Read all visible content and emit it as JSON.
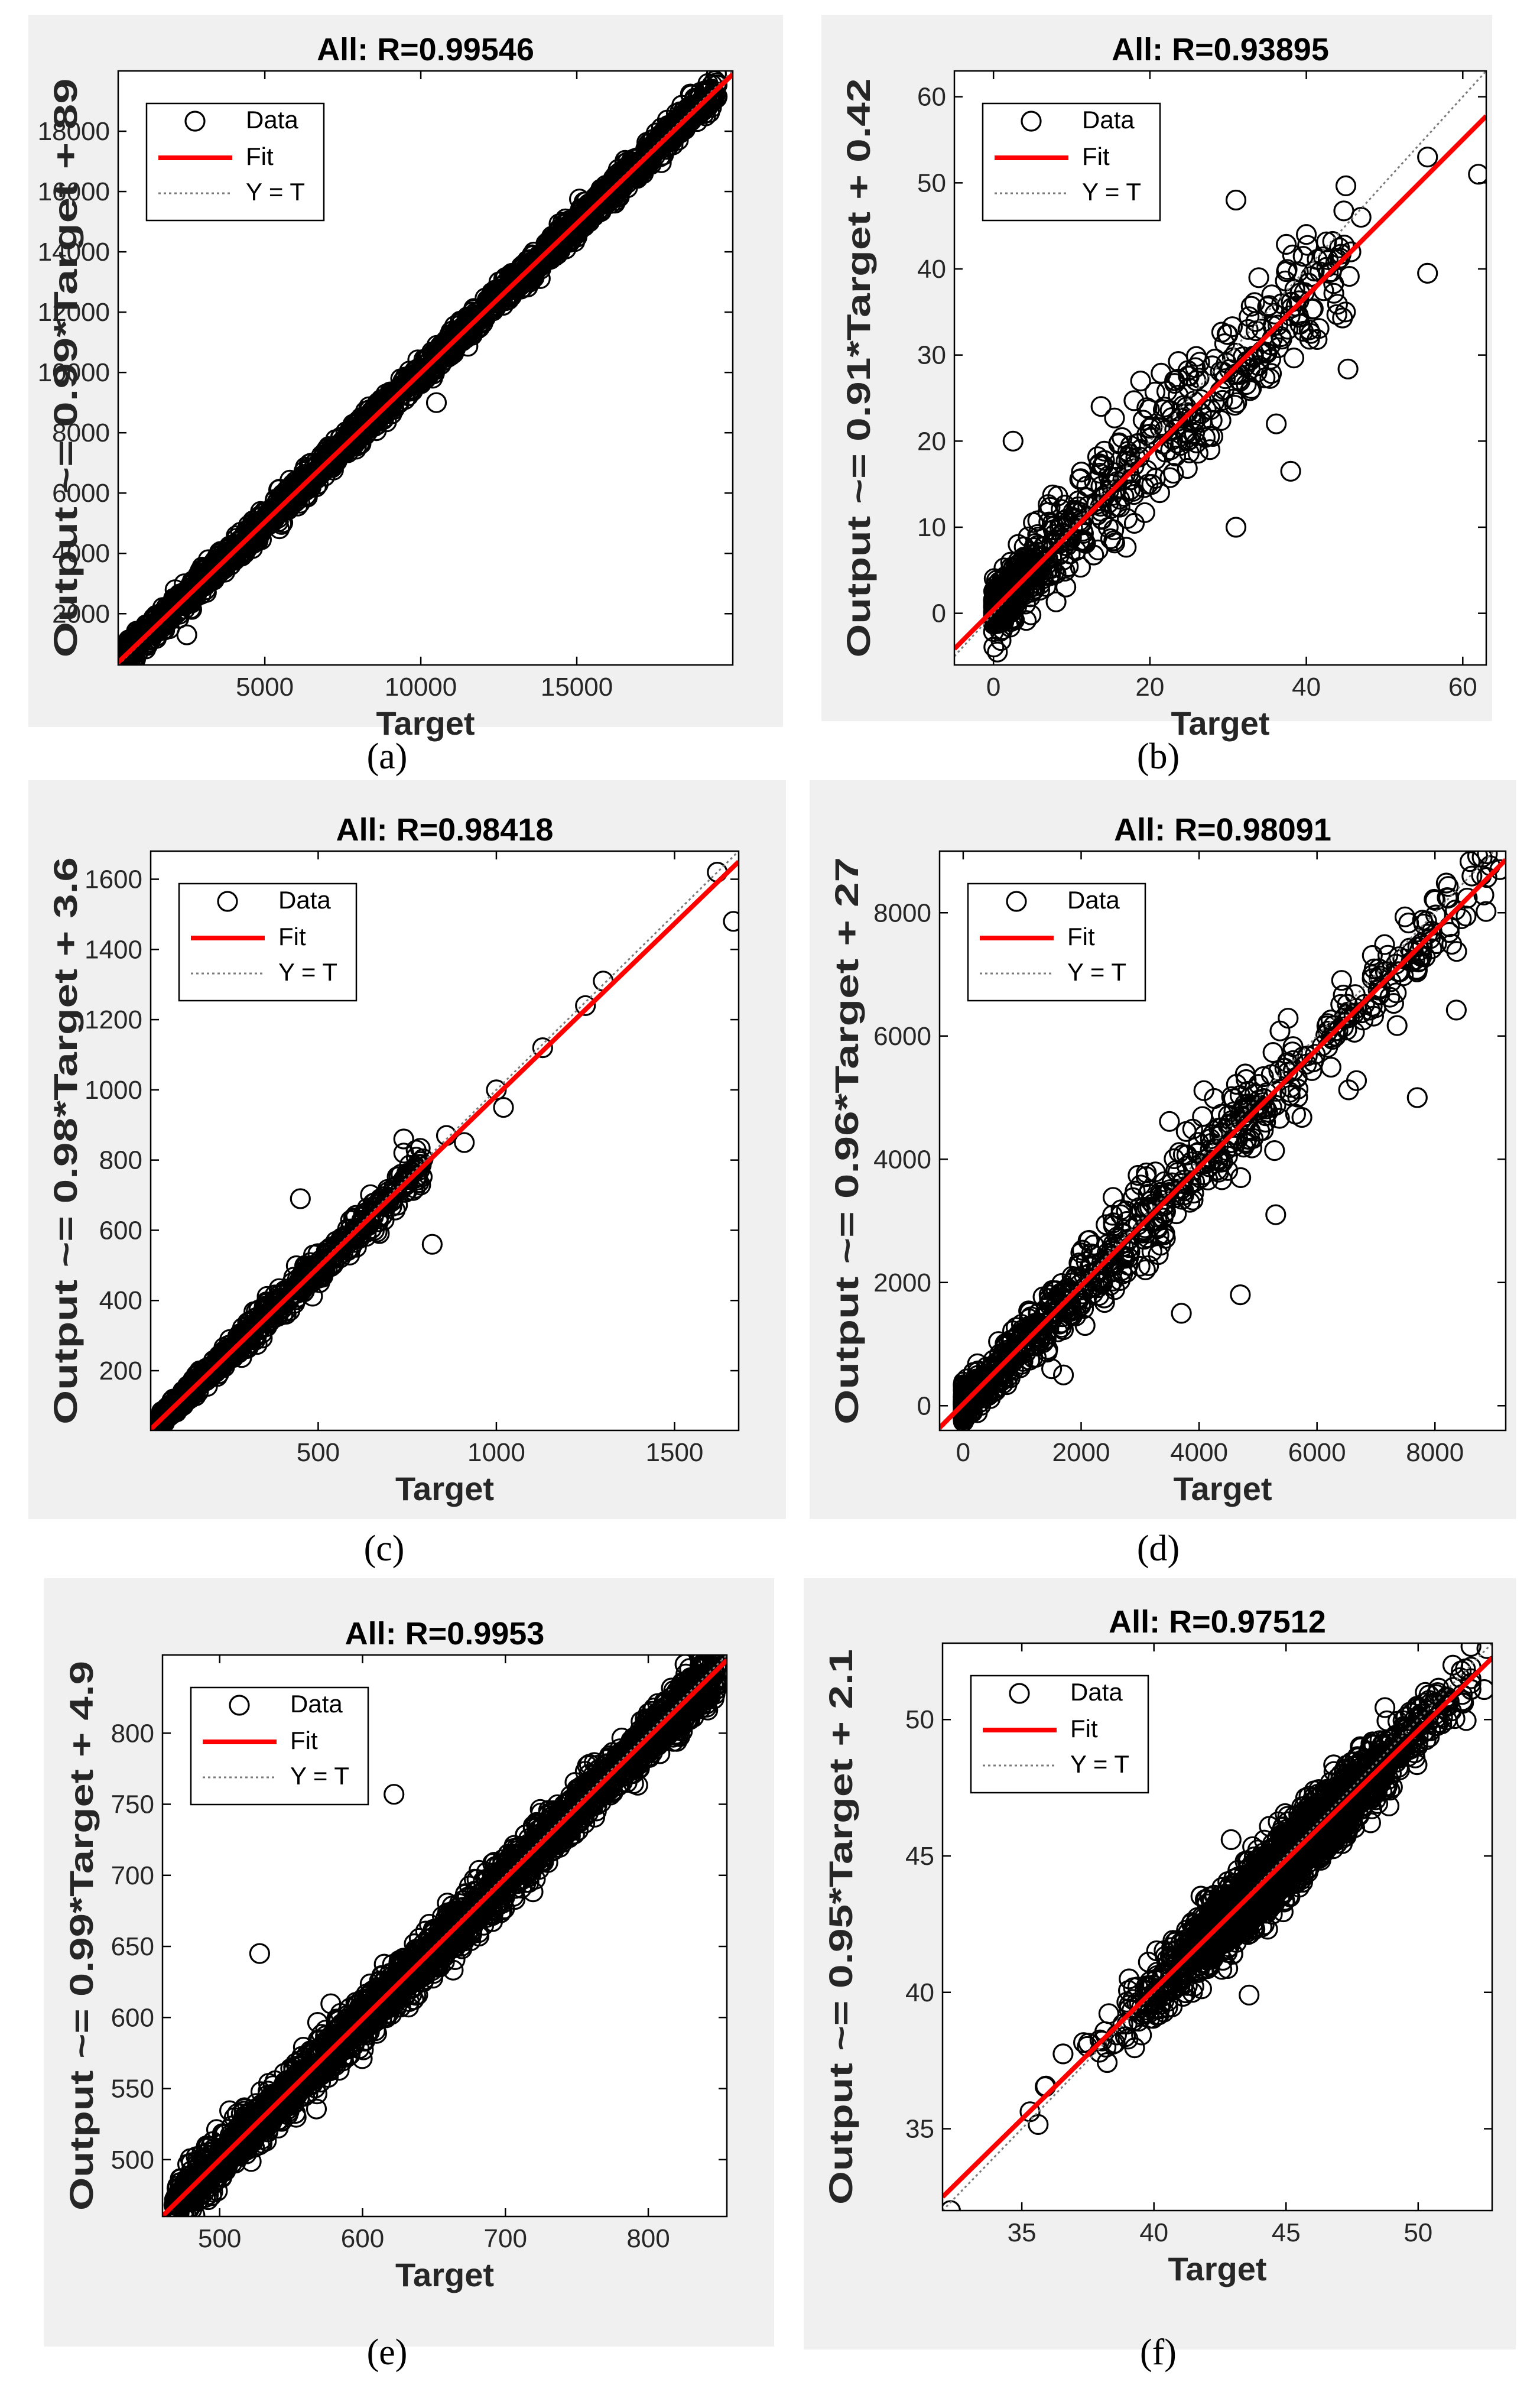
{
  "figure": {
    "panel_background": "#f0f0f0",
    "fit_color": "#ff0000",
    "marker_color": "#000000",
    "identity_color": "#7a7a7a"
  },
  "chart_data": [
    {
      "id": "a",
      "caption": "(a)",
      "type": "scatter",
      "title": "All: R=0.99546",
      "xlabel": "Target",
      "ylabel": "Output ~= 0.99*Target + 89",
      "xlim": [
        300,
        20000
      ],
      "ylim": [
        300,
        20000
      ],
      "xticks": [
        5000,
        10000,
        15000
      ],
      "yticks": [
        2000,
        4000,
        6000,
        8000,
        10000,
        12000,
        14000,
        16000,
        18000
      ],
      "fit": {
        "slope": 0.99,
        "intercept": 89
      },
      "legend": {
        "placement": "top-left",
        "entries": [
          "Data",
          "Fit",
          "Y = T"
        ]
      },
      "scatter": {
        "range": [
          400,
          19500
        ],
        "noise": 220,
        "n": 2200,
        "outliers": [
          [
            19500,
            19150
          ],
          [
            2500,
            1300
          ],
          [
            10500,
            9000
          ]
        ]
      }
    },
    {
      "id": "b",
      "caption": "(b)",
      "type": "scatter",
      "title": "All: R=0.93895",
      "xlabel": "Target",
      "ylabel": "Output ~= 0.91*Target + 0.42",
      "xlim": [
        -5,
        63
      ],
      "ylim": [
        -6,
        63
      ],
      "xticks": [
        0,
        20,
        40,
        60
      ],
      "yticks": [
        0,
        10,
        20,
        30,
        40,
        50,
        60
      ],
      "fit": {
        "slope": 0.91,
        "intercept": 0.42
      },
      "legend": {
        "placement": "top-left",
        "entries": [
          "Data",
          "Fit",
          "Y = T"
        ]
      },
      "scatter": {
        "range": [
          0,
          46
        ],
        "noise": 3.8,
        "n": 700,
        "skew": 2.4,
        "outliers": [
          [
            62,
            51
          ],
          [
            55.5,
            39.5
          ],
          [
            55.5,
            53
          ],
          [
            31,
            48
          ],
          [
            38,
            16.5
          ],
          [
            31,
            10
          ],
          [
            2.5,
            20
          ],
          [
            0.5,
            -4.5
          ],
          [
            45,
            35
          ],
          [
            47,
            46
          ],
          [
            40,
            44
          ]
        ]
      }
    },
    {
      "id": "c",
      "caption": "(c)",
      "type": "scatter",
      "title": "All: R=0.98418",
      "xlabel": "Target",
      "ylabel": "Output ~= 0.98*Target + 3.6",
      "xlim": [
        30,
        1680
      ],
      "ylim": [
        30,
        1680
      ],
      "xticks": [
        500,
        1000,
        1500
      ],
      "yticks": [
        200,
        400,
        600,
        800,
        1000,
        1200,
        1400,
        1600
      ],
      "fit": {
        "slope": 0.98,
        "intercept": 3.6
      },
      "legend": {
        "placement": "top-left",
        "entries": [
          "Data",
          "Fit",
          "Y = T"
        ]
      },
      "scatter": {
        "range": [
          60,
          800
        ],
        "noise": 22,
        "n": 900,
        "skew": 2.2,
        "outliers": [
          [
            1620,
            1620
          ],
          [
            1665,
            1480
          ],
          [
            1300,
            1310
          ],
          [
            1250,
            1240
          ],
          [
            1130,
            1120
          ],
          [
            1000,
            1000
          ],
          [
            1020,
            950
          ],
          [
            820,
            560
          ],
          [
            450,
            690
          ],
          [
            740,
            860
          ],
          [
            740,
            820
          ],
          [
            860,
            870
          ],
          [
            910,
            850
          ]
        ]
      }
    },
    {
      "id": "d",
      "caption": "(d)",
      "type": "scatter",
      "title": "All: R=0.98091",
      "xlabel": "Target",
      "ylabel": "Output ~= 0.96*Target + 27",
      "xlim": [
        -400,
        9200
      ],
      "ylim": [
        -400,
        9000
      ],
      "xticks": [
        0,
        2000,
        4000,
        6000,
        8000
      ],
      "yticks": [
        0,
        2000,
        4000,
        6000,
        8000
      ],
      "fit": {
        "slope": 0.96,
        "intercept": 27
      },
      "legend": {
        "placement": "top-left",
        "entries": [
          "Data",
          "Fit",
          "Y = T"
        ]
      },
      "scatter": {
        "range": [
          0,
          9000
        ],
        "noise": 380,
        "n": 900,
        "skew": 2.6,
        "outliers": [
          [
            7700,
            5000
          ],
          [
            3700,
            1500
          ],
          [
            4700,
            1800
          ],
          [
            5300,
            3100
          ],
          [
            1700,
            500
          ],
          [
            1500,
            600
          ],
          [
            9100,
            8700
          ],
          [
            8800,
            8900
          ]
        ]
      }
    },
    {
      "id": "e",
      "caption": "(e)",
      "type": "scatter",
      "title": "All: R=0.9953",
      "xlabel": "Target",
      "ylabel": "Output ~= 0.99*Target + 4.9",
      "xlim": [
        460,
        855
      ],
      "ylim": [
        460,
        855
      ],
      "xticks": [
        500,
        600,
        700,
        800
      ],
      "yticks": [
        500,
        550,
        600,
        650,
        700,
        750,
        800
      ],
      "fit": {
        "slope": 0.99,
        "intercept": 4.9
      },
      "legend": {
        "placement": "top-left",
        "entries": [
          "Data",
          "Fit",
          "Y = T"
        ]
      },
      "scatter": {
        "range": [
          468,
          848
        ],
        "noise": 9,
        "n": 2600,
        "outliers": [
          [
            622,
            757
          ],
          [
            528,
            645
          ],
          [
            468,
            468
          ],
          [
            848,
            848
          ]
        ]
      }
    },
    {
      "id": "f",
      "caption": "(f)",
      "type": "scatter",
      "title": "All: R=0.97512",
      "xlabel": "Target",
      "ylabel": "Output ~= 0.95*Target + 2.1",
      "xlim": [
        32,
        52.8
      ],
      "ylim": [
        32,
        52.8
      ],
      "xticks": [
        35,
        40,
        45,
        50
      ],
      "yticks": [
        35,
        40,
        45,
        50
      ],
      "fit": {
        "slope": 0.95,
        "intercept": 2.1
      },
      "legend": {
        "placement": "top-left",
        "entries": [
          "Data",
          "Fit",
          "Y = T"
        ]
      },
      "scatter": {
        "range": [
          33,
          52
        ],
        "noise": 0.6,
        "n": 2200,
        "center": 45,
        "spread": 2.6,
        "outliers": [
          [
            32.3,
            32.0
          ],
          [
            43.6,
            39.9
          ],
          [
            52.6,
            52.6
          ],
          [
            52.5,
            51.1
          ]
        ]
      }
    }
  ]
}
